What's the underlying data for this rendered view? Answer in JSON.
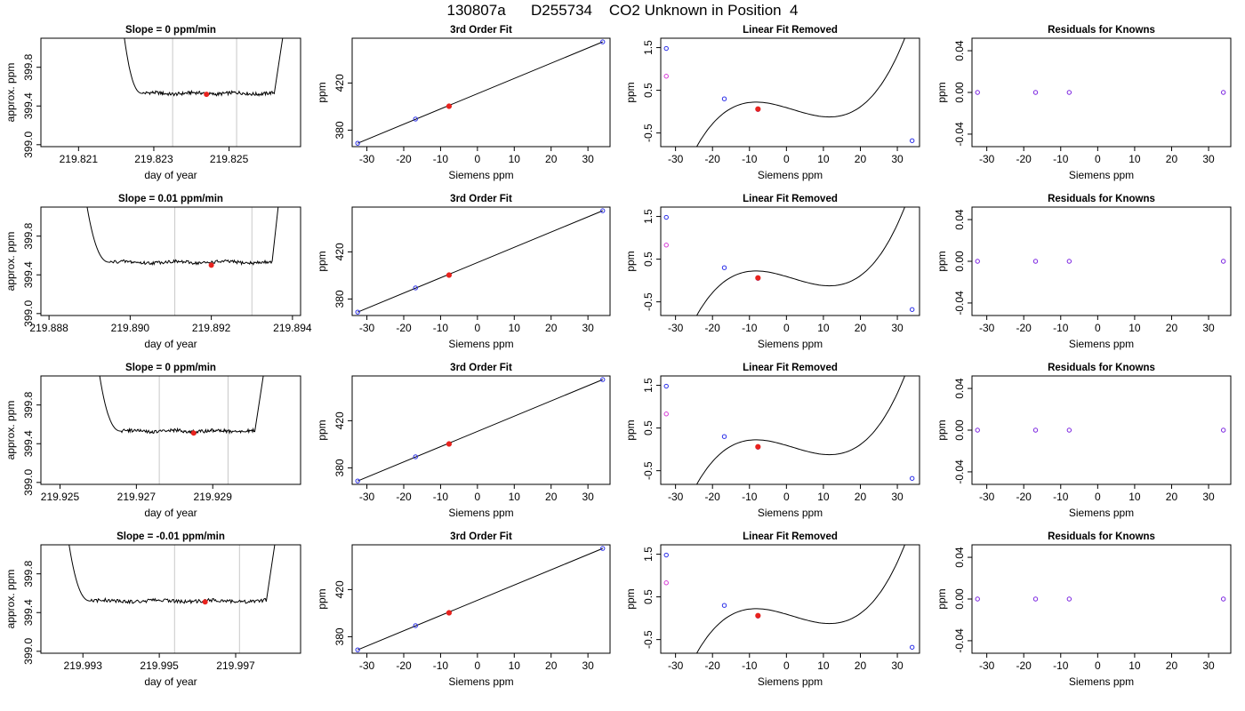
{
  "page_title": "130807a      D255734    CO2 Unknown in Position  4",
  "colors": {
    "curve": "#000000",
    "marker_red": "#e8231e",
    "marker_blue": "#2a2ee8",
    "marker_magenta": "#d63ad6",
    "marker_purple": "#7a22e0",
    "window_line": "#c8c8c8",
    "frame": "#000000"
  },
  "chart_data": [
    {
      "type": "line",
      "title": "Slope =  0  ppm/min",
      "xlabel": "day of year",
      "ylabel": "approx. ppm",
      "xlim": [
        219.82,
        219.8269
      ],
      "ylim": [
        398.98,
        400.1
      ],
      "x_ticks": [
        219.821,
        219.823,
        219.825
      ],
      "x_tick_labels": [
        "219.821",
        "219.823",
        "219.825"
      ],
      "y_ticks": [
        399.0,
        399.4,
        399.8
      ],
      "y_tick_labels": [
        "399.0",
        "399.4",
        "399.8"
      ],
      "window": [
        219.8235,
        219.8252
      ],
      "trace": {
        "start": 219.8221,
        "stable_start": 219.8227,
        "stable_end": 219.8262,
        "end": 219.8265,
        "baseline": 399.53,
        "high": 400.1
      },
      "marker": {
        "x": 219.8244,
        "y": 399.52
      }
    },
    {
      "type": "scatter",
      "title": "3rd Order Fit",
      "xlabel": "Siemens ppm",
      "ylabel": "ppm",
      "xlim": [
        -34,
        36
      ],
      "ylim": [
        366,
        458
      ],
      "x_ticks": [
        -30,
        -20,
        -10,
        0,
        10,
        20,
        30
      ],
      "x_tick_labels": [
        "-30",
        "-20",
        "-10",
        "0",
        "10",
        "20",
        "30"
      ],
      "y_ticks": [
        380,
        420
      ],
      "y_tick_labels": [
        "380",
        "420"
      ],
      "fit_line": [
        [
          -32.5,
          368.9
        ],
        [
          34.0,
          454.9
        ]
      ],
      "points_blue": [
        [
          -32.5,
          368.9
        ],
        [
          -16.8,
          389.4
        ],
        [
          -7.7,
          400.3
        ],
        [
          34.0,
          454.9
        ]
      ],
      "point_red": [
        -7.7,
        400.3
      ]
    },
    {
      "type": "line",
      "title": "Linear Fit Removed",
      "xlabel": "Siemens ppm",
      "ylabel": "ppm",
      "xlim": [
        -34,
        36
      ],
      "ylim": [
        -0.82,
        1.72
      ],
      "x_ticks": [
        -30,
        -20,
        -10,
        0,
        10,
        20,
        30
      ],
      "x_tick_labels": [
        "-30",
        "-20",
        "-10",
        "0",
        "10",
        "20",
        "30"
      ],
      "y_ticks": [
        -0.5,
        0.5,
        1.5
      ],
      "y_tick_labels": [
        "-0.5",
        "0.5",
        "1.5"
      ],
      "cubic_fit": {
        "a": 8.85e-05,
        "b": -0.00045,
        "c": -0.02545,
        "d": 0.0935,
        "x_from": -33.2,
        "x_to": 34.0
      },
      "points_blue": [
        [
          -32.5,
          1.48
        ],
        [
          -16.8,
          0.3
        ],
        [
          -7.7,
          0.05
        ],
        [
          34.0,
          -0.68
        ]
      ],
      "point_red": [
        -7.7,
        0.06
      ],
      "point_magenta": [
        -32.5,
        0.83
      ]
    },
    {
      "type": "scatter",
      "title": "Residuals for Knowns",
      "xlabel": "Siemens ppm",
      "ylabel": "ppm",
      "xlim": [
        -34,
        36
      ],
      "ylim": [
        -0.052,
        0.052
      ],
      "x_ticks": [
        -30,
        -20,
        -10,
        0,
        10,
        20,
        30
      ],
      "x_tick_labels": [
        "-30",
        "-20",
        "-10",
        "0",
        "10",
        "20",
        "30"
      ],
      "y_ticks": [
        -0.04,
        0.0,
        0.04
      ],
      "y_tick_labels": [
        "-0.04",
        "0.00",
        "0.04"
      ],
      "points_purple": [
        [
          -32.5,
          0.0
        ],
        [
          -16.8,
          0.0
        ],
        [
          -7.7,
          0.0
        ],
        [
          34.0,
          0.0
        ]
      ]
    },
    {
      "type": "line",
      "title": "Slope =  0.01  ppm/min",
      "xlabel": "day of year",
      "ylabel": "approx. ppm",
      "xlim": [
        219.8878,
        219.8942
      ],
      "ylim": [
        398.98,
        400.1
      ],
      "x_ticks": [
        219.888,
        219.89,
        219.892,
        219.894
      ],
      "x_tick_labels": [
        "219.888",
        "219.890",
        "219.892",
        "219.894"
      ],
      "y_ticks": [
        399.0,
        399.4,
        399.8
      ],
      "y_tick_labels": [
        "399.0",
        "399.4",
        "399.8"
      ],
      "window": [
        219.8911,
        219.893
      ],
      "trace": {
        "start": 219.8888,
        "stable_start": 219.8895,
        "stable_end": 219.8935,
        "end": 219.8937,
        "baseline": 399.53,
        "high": 400.1
      },
      "marker": {
        "x": 219.892,
        "y": 399.5
      }
    },
    {
      "type": "scatter",
      "title": "3rd Order Fit",
      "xlabel": "Siemens ppm",
      "ylabel": "ppm",
      "xlim": [
        -34,
        36
      ],
      "ylim": [
        366,
        458
      ],
      "x_ticks": [
        -30,
        -20,
        -10,
        0,
        10,
        20,
        30
      ],
      "x_tick_labels": [
        "-30",
        "-20",
        "-10",
        "0",
        "10",
        "20",
        "30"
      ],
      "y_ticks": [
        380,
        420
      ],
      "y_tick_labels": [
        "380",
        "420"
      ],
      "fit_line": [
        [
          -32.5,
          368.9
        ],
        [
          34.0,
          454.9
        ]
      ],
      "points_blue": [
        [
          -32.5,
          368.9
        ],
        [
          -16.8,
          389.4
        ],
        [
          -7.7,
          400.3
        ],
        [
          34.0,
          454.9
        ]
      ],
      "point_red": [
        -7.7,
        400.3
      ]
    },
    {
      "type": "line",
      "title": "Linear Fit Removed",
      "xlabel": "Siemens ppm",
      "ylabel": "ppm",
      "xlim": [
        -34,
        36
      ],
      "ylim": [
        -0.82,
        1.72
      ],
      "x_ticks": [
        -30,
        -20,
        -10,
        0,
        10,
        20,
        30
      ],
      "x_tick_labels": [
        "-30",
        "-20",
        "-10",
        "0",
        "10",
        "20",
        "30"
      ],
      "y_ticks": [
        -0.5,
        0.5,
        1.5
      ],
      "y_tick_labels": [
        "-0.5",
        "0.5",
        "1.5"
      ],
      "cubic_fit": {
        "a": 8.85e-05,
        "b": -0.00045,
        "c": -0.02545,
        "d": 0.0935,
        "x_from": -33.2,
        "x_to": 34.0
      },
      "points_blue": [
        [
          -32.5,
          1.48
        ],
        [
          -16.8,
          0.3
        ],
        [
          -7.7,
          0.05
        ],
        [
          34.0,
          -0.68
        ]
      ],
      "point_red": [
        -7.7,
        0.06
      ],
      "point_magenta": [
        -32.5,
        0.83
      ]
    },
    {
      "type": "scatter",
      "title": "Residuals for Knowns",
      "xlabel": "Siemens ppm",
      "ylabel": "ppm",
      "xlim": [
        -34,
        36
      ],
      "ylim": [
        -0.052,
        0.052
      ],
      "x_ticks": [
        -30,
        -20,
        -10,
        0,
        10,
        20,
        30
      ],
      "x_tick_labels": [
        "-30",
        "-20",
        "-10",
        "0",
        "10",
        "20",
        "30"
      ],
      "y_ticks": [
        -0.04,
        0.0,
        0.04
      ],
      "y_tick_labels": [
        "-0.04",
        "0.00",
        "0.04"
      ],
      "points_purple": [
        [
          -32.5,
          0.0
        ],
        [
          -16.8,
          0.0
        ],
        [
          -7.7,
          0.0
        ],
        [
          34.0,
          0.0
        ]
      ]
    },
    {
      "type": "line",
      "title": "Slope =  0  ppm/min",
      "xlabel": "day of year",
      "ylabel": "approx. ppm",
      "xlim": [
        219.9245,
        219.9313
      ],
      "ylim": [
        398.98,
        400.1
      ],
      "x_ticks": [
        219.925,
        219.927,
        219.929
      ],
      "x_tick_labels": [
        "219.925",
        "219.927",
        "219.929"
      ],
      "y_ticks": [
        399.0,
        399.4,
        399.8
      ],
      "y_tick_labels": [
        "399.0",
        "399.4",
        "399.8"
      ],
      "window": [
        219.9276,
        219.9294
      ],
      "trace": {
        "start": 219.9259,
        "stable_start": 219.9266,
        "stable_end": 219.9301,
        "end": 219.9304,
        "baseline": 399.53,
        "high": 400.1
      },
      "marker": {
        "x": 219.9285,
        "y": 399.51
      }
    },
    {
      "type": "scatter",
      "title": "3rd Order Fit",
      "xlabel": "Siemens ppm",
      "ylabel": "ppm",
      "xlim": [
        -34,
        36
      ],
      "ylim": [
        366,
        458
      ],
      "x_ticks": [
        -30,
        -20,
        -10,
        0,
        10,
        20,
        30
      ],
      "x_tick_labels": [
        "-30",
        "-20",
        "-10",
        "0",
        "10",
        "20",
        "30"
      ],
      "y_ticks": [
        380,
        420
      ],
      "y_tick_labels": [
        "380",
        "420"
      ],
      "fit_line": [
        [
          -32.5,
          368.9
        ],
        [
          34.0,
          454.9
        ]
      ],
      "points_blue": [
        [
          -32.5,
          368.9
        ],
        [
          -16.8,
          389.4
        ],
        [
          -7.7,
          400.3
        ],
        [
          34.0,
          454.9
        ]
      ],
      "point_red": [
        -7.7,
        400.3
      ]
    },
    {
      "type": "line",
      "title": "Linear Fit Removed",
      "xlabel": "Siemens ppm",
      "ylabel": "ppm",
      "xlim": [
        -34,
        36
      ],
      "ylim": [
        -0.82,
        1.72
      ],
      "x_ticks": [
        -30,
        -20,
        -10,
        0,
        10,
        20,
        30
      ],
      "x_tick_labels": [
        "-30",
        "-20",
        "-10",
        "0",
        "10",
        "20",
        "30"
      ],
      "y_ticks": [
        -0.5,
        0.5,
        1.5
      ],
      "y_tick_labels": [
        "-0.5",
        "0.5",
        "1.5"
      ],
      "cubic_fit": {
        "a": 8.85e-05,
        "b": -0.00045,
        "c": -0.02545,
        "d": 0.0935,
        "x_from": -33.2,
        "x_to": 34.0
      },
      "points_blue": [
        [
          -32.5,
          1.48
        ],
        [
          -16.8,
          0.3
        ],
        [
          -7.7,
          0.05
        ],
        [
          34.0,
          -0.68
        ]
      ],
      "point_red": [
        -7.7,
        0.06
      ],
      "point_magenta": [
        -32.5,
        0.83
      ]
    },
    {
      "type": "scatter",
      "title": "Residuals for Knowns",
      "xlabel": "Siemens ppm",
      "ylabel": "ppm",
      "xlim": [
        -34,
        36
      ],
      "ylim": [
        -0.052,
        0.052
      ],
      "x_ticks": [
        -30,
        -20,
        -10,
        0,
        10,
        20,
        30
      ],
      "x_tick_labels": [
        "-30",
        "-20",
        "-10",
        "0",
        "10",
        "20",
        "30"
      ],
      "y_ticks": [
        -0.04,
        0.0,
        0.04
      ],
      "y_tick_labels": [
        "-0.04",
        "0.00",
        "0.04"
      ],
      "points_purple": [
        [
          -32.5,
          0.0
        ],
        [
          -16.8,
          0.0
        ],
        [
          -7.7,
          0.0
        ],
        [
          34.0,
          0.0
        ]
      ]
    },
    {
      "type": "line",
      "title": "Slope =  -0.01  ppm/min",
      "xlabel": "day of year",
      "ylabel": "approx. ppm",
      "xlim": [
        219.9919,
        219.9987
      ],
      "ylim": [
        398.98,
        400.1
      ],
      "x_ticks": [
        219.993,
        219.995,
        219.997
      ],
      "x_tick_labels": [
        "219.993",
        "219.995",
        "219.997"
      ],
      "y_ticks": [
        399.0,
        399.4,
        399.8
      ],
      "y_tick_labels": [
        "399.0",
        "399.4",
        "399.8"
      ],
      "window": [
        219.9954,
        219.9971
      ],
      "trace": {
        "start": 219.9925,
        "stable_start": 219.9932,
        "stable_end": 219.9978,
        "end": 219.9981,
        "baseline": 399.52,
        "high": 400.1
      },
      "marker": {
        "x": 219.9962,
        "y": 399.51
      }
    },
    {
      "type": "scatter",
      "title": "3rd Order Fit",
      "xlabel": "Siemens ppm",
      "ylabel": "ppm",
      "xlim": [
        -34,
        36
      ],
      "ylim": [
        366,
        458
      ],
      "x_ticks": [
        -30,
        -20,
        -10,
        0,
        10,
        20,
        30
      ],
      "x_tick_labels": [
        "-30",
        "-20",
        "-10",
        "0",
        "10",
        "20",
        "30"
      ],
      "y_ticks": [
        380,
        420
      ],
      "y_tick_labels": [
        "380",
        "420"
      ],
      "fit_line": [
        [
          -32.5,
          368.9
        ],
        [
          34.0,
          454.9
        ]
      ],
      "points_blue": [
        [
          -32.5,
          368.9
        ],
        [
          -16.8,
          389.4
        ],
        [
          -7.7,
          400.3
        ],
        [
          34.0,
          454.9
        ]
      ],
      "point_red": [
        -7.7,
        400.3
      ]
    },
    {
      "type": "line",
      "title": "Linear Fit Removed",
      "xlabel": "Siemens ppm",
      "ylabel": "ppm",
      "xlim": [
        -34,
        36
      ],
      "ylim": [
        -0.82,
        1.72
      ],
      "x_ticks": [
        -30,
        -20,
        -10,
        0,
        10,
        20,
        30
      ],
      "x_tick_labels": [
        "-30",
        "-20",
        "-10",
        "0",
        "10",
        "20",
        "30"
      ],
      "y_ticks": [
        -0.5,
        0.5,
        1.5
      ],
      "y_tick_labels": [
        "-0.5",
        "0.5",
        "1.5"
      ],
      "cubic_fit": {
        "a": 8.85e-05,
        "b": -0.00045,
        "c": -0.02545,
        "d": 0.0935,
        "x_from": -33.2,
        "x_to": 34.0
      },
      "points_blue": [
        [
          -32.5,
          1.48
        ],
        [
          -16.8,
          0.3
        ],
        [
          -7.7,
          0.05
        ],
        [
          34.0,
          -0.68
        ]
      ],
      "point_red": [
        -7.7,
        0.06
      ],
      "point_magenta": [
        -32.5,
        0.83
      ]
    },
    {
      "type": "scatter",
      "title": "Residuals for Knowns",
      "xlabel": "Siemens ppm",
      "ylabel": "ppm",
      "xlim": [
        -34,
        36
      ],
      "ylim": [
        -0.052,
        0.052
      ],
      "x_ticks": [
        -30,
        -20,
        -10,
        0,
        10,
        20,
        30
      ],
      "x_tick_labels": [
        "-30",
        "-20",
        "-10",
        "0",
        "10",
        "20",
        "30"
      ],
      "y_ticks": [
        -0.04,
        0.0,
        0.04
      ],
      "y_tick_labels": [
        "-0.04",
        "0.00",
        "0.04"
      ],
      "points_purple": [
        [
          -32.5,
          0.0
        ],
        [
          -16.8,
          0.0
        ],
        [
          -7.7,
          0.0
        ],
        [
          34.0,
          0.0
        ]
      ]
    }
  ]
}
